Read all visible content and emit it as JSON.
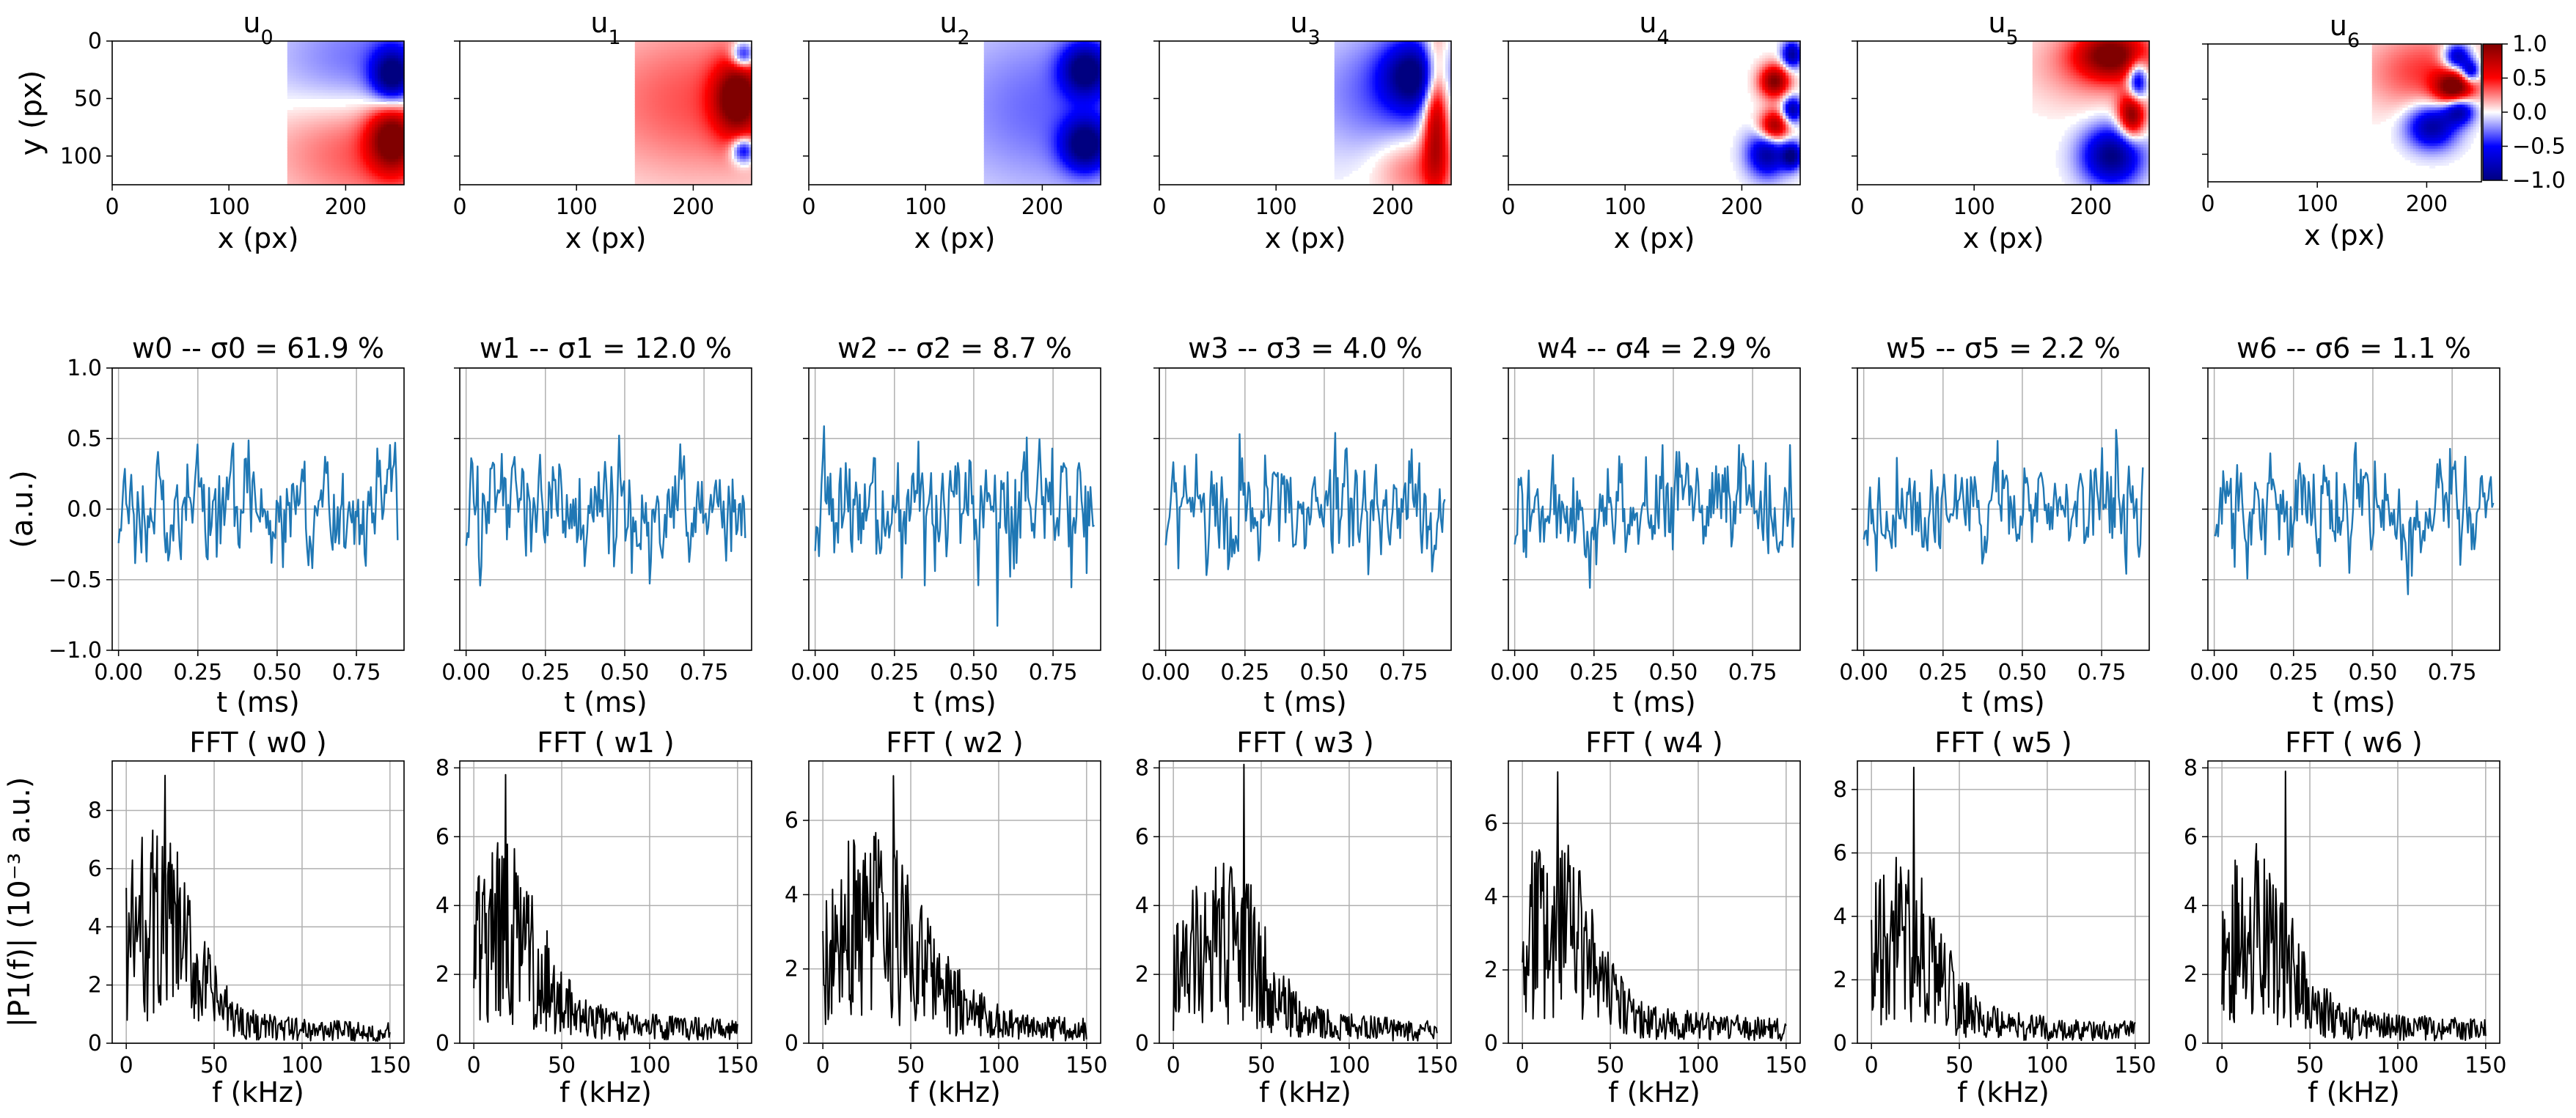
{
  "chart_data": {
    "type": "figure-grid",
    "colorbar": {
      "range": [
        -1.0,
        1.0
      ],
      "ticks": [
        "1.0",
        "0.5",
        "0.0",
        "−0.5",
        "−1.0"
      ],
      "tick_values": [
        1.0,
        0.5,
        0.0,
        -0.5,
        -1.0
      ]
    },
    "heatmaps": {
      "type": "heatmap",
      "xlabel": "x (px)",
      "ylabel": "y (px)",
      "xlim": [
        0,
        250
      ],
      "ylim": [
        0,
        125
      ],
      "xticks": [
        0,
        100,
        200
      ],
      "yticks": [
        0,
        50,
        100
      ],
      "titles": [
        "u0",
        "u1",
        "u2",
        "u3",
        "u4",
        "u5",
        "u6"
      ],
      "title_base": "u",
      "subs": [
        "0",
        "1",
        "2",
        "3",
        "4",
        "5",
        "6"
      ]
    },
    "time_series": {
      "type": "line",
      "xlabel": "t (ms)",
      "ylabel": "(a.u.)",
      "xlim": [
        -0.02,
        0.9
      ],
      "ylim": [
        -1.0,
        1.0
      ],
      "xticks": [
        "0.00",
        "0.25",
        "0.50",
        "0.75"
      ],
      "xtick_values": [
        0.0,
        0.25,
        0.5,
        0.75
      ],
      "yticks": [
        "1.0",
        "0.5",
        "0.0",
        "−0.5",
        "−1.0"
      ],
      "ytick_values": [
        1.0,
        0.5,
        0.0,
        -0.5,
        -1.0
      ],
      "color": "#1f77b4",
      "t_end": 0.88,
      "n_points": 220,
      "titles": [
        "w0 -- σ0 = 61.9 %",
        "w1 -- σ1 = 12.0 %",
        "w2 -- σ2 = 8.7 %",
        "w3 -- σ3 = 4.0 %",
        "w4 -- σ4 = 2.9 %",
        "w5 -- σ5 = 2.2 %",
        "w6 -- σ6 = 1.1 %"
      ],
      "sigma_percent": [
        61.9,
        12.0,
        8.7,
        4.0,
        2.9,
        2.2,
        1.1
      ],
      "amplitude_std": [
        0.18,
        0.17,
        0.19,
        0.17,
        0.16,
        0.16,
        0.17
      ]
    },
    "spectra": {
      "type": "line",
      "xlabel": "f (kHz)",
      "ylabel": "|P1(f)| (10⁻³ a.u.)",
      "xlim": [
        -8,
        158
      ],
      "xticks": [
        0,
        50,
        100,
        150
      ],
      "color": "#000000",
      "f_max": 150,
      "n_points": 300,
      "titles": [
        "FFT ( w0 )",
        "FFT ( w1 )",
        "FFT ( w2 )",
        "FFT ( w3 )",
        "FFT ( w4 )",
        "FFT ( w5 )",
        "FFT ( w6 )"
      ],
      "ylims": [
        [
          0,
          9.7
        ],
        [
          0,
          8.2
        ],
        [
          0,
          7.6
        ],
        [
          0,
          8.2
        ],
        [
          0,
          7.7
        ],
        [
          0,
          8.9
        ],
        [
          0,
          8.2
        ]
      ],
      "yticks": [
        [
          0,
          2,
          4,
          6,
          8
        ],
        [
          0,
          2,
          4,
          6,
          8
        ],
        [
          0,
          2,
          4,
          6
        ],
        [
          0,
          2,
          4,
          6,
          8
        ],
        [
          0,
          2,
          4,
          6
        ],
        [
          0,
          2,
          4,
          6,
          8
        ],
        [
          0,
          2,
          4,
          6,
          8
        ]
      ],
      "peak_values": [
        9.2,
        7.8,
        7.2,
        8.1,
        7.4,
        8.7,
        7.9
      ],
      "peak_freq_khz": [
        22,
        18,
        40,
        40,
        20,
        24,
        36
      ]
    }
  }
}
